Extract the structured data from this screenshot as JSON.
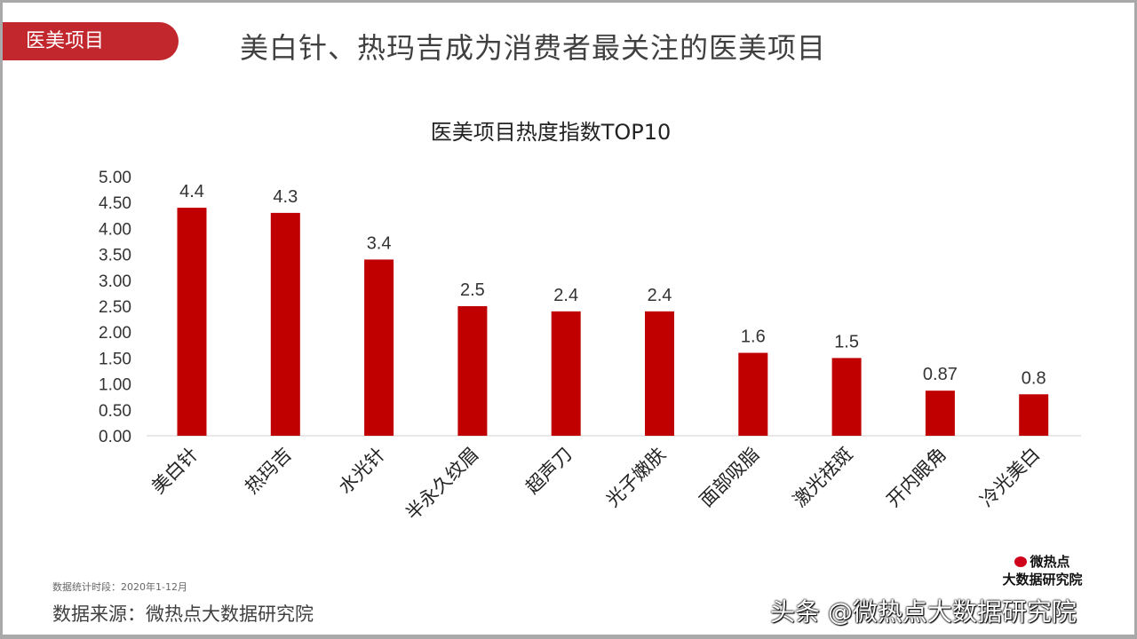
{
  "header": {
    "tag": "医美项目",
    "headline": "美白针、热玛吉成为消费者最关注的医美项目"
  },
  "chart_data": {
    "type": "bar",
    "title": "医美项目热度指数TOP10",
    "categories": [
      "美白针",
      "热玛吉",
      "水光针",
      "半永久纹眉",
      "超声刀",
      "光子嫩肤",
      "面部吸脂",
      "激光祛斑",
      "开内眼角",
      "冷光美白"
    ],
    "values": [
      4.4,
      4.3,
      3.4,
      2.5,
      2.4,
      2.4,
      1.6,
      1.5,
      0.87,
      0.8
    ],
    "data_labels": [
      "4.4",
      "4.3",
      "3.4",
      "2.5",
      "2.4",
      "2.4",
      "1.6",
      "1.5",
      "0.87",
      "0.8"
    ],
    "ylim": [
      0,
      5
    ],
    "yticks": [
      "0.00",
      "0.50",
      "1.00",
      "1.50",
      "2.00",
      "2.50",
      "3.00",
      "3.50",
      "4.00",
      "4.50",
      "5.00"
    ],
    "grid": false,
    "bar_color": "#c00000",
    "xlabel": "",
    "ylabel": ""
  },
  "footer": {
    "note": "数据统计时段：2020年1-12月",
    "source": "数据来源：微热点大数据研究院",
    "logo_line1": "微热点",
    "logo_line2": "大数据研究院",
    "watermark": "头条 @微热点大数据研究院"
  }
}
